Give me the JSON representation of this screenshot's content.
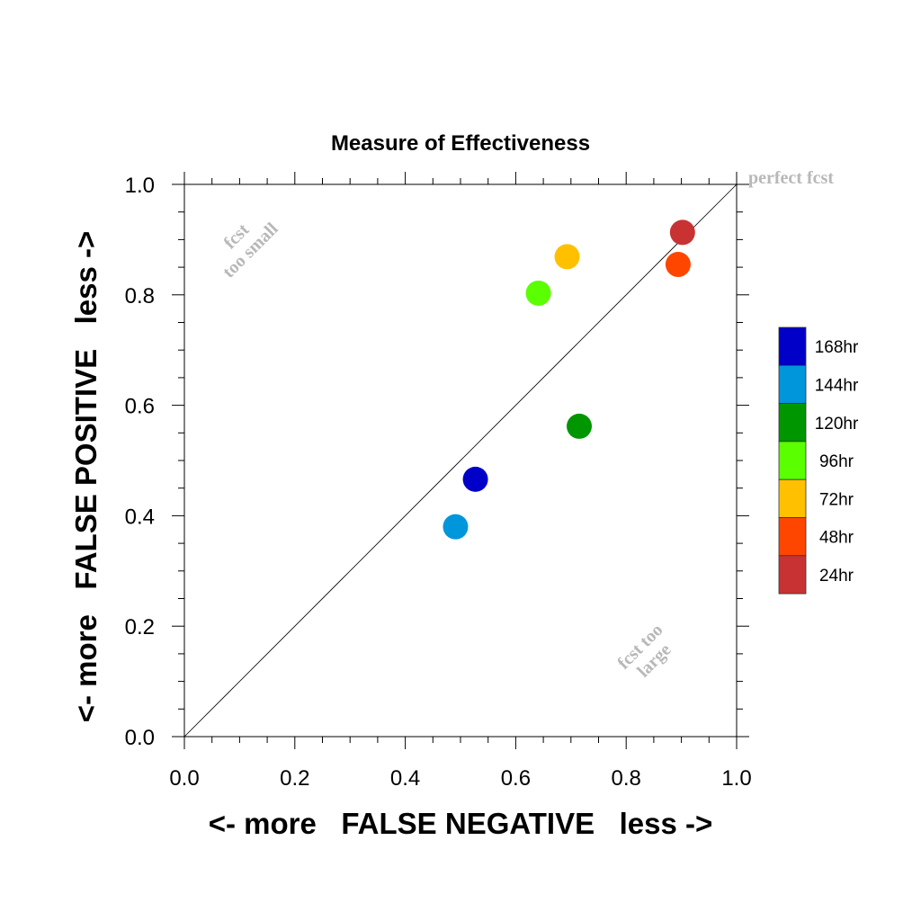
{
  "chart_data": {
    "type": "scatter",
    "title": "Measure of Effectiveness",
    "xlabel": "<- more   FALSE NEGATIVE   less ->",
    "ylabel": "<- more   FALSE POSITIVE   less ->",
    "xlim": [
      0.0,
      1.0
    ],
    "ylim": [
      0.0,
      1.0
    ],
    "xticks": [
      "0.0",
      "0.2",
      "0.4",
      "0.6",
      "0.8",
      "1.0"
    ],
    "yticks": [
      "0.0",
      "0.2",
      "0.4",
      "0.6",
      "0.8",
      "1.0"
    ],
    "grid": false,
    "legend_position": "right",
    "reference_line": "diagonal y = x",
    "annotations": {
      "perfect": "perfect fcst",
      "small_line1": "fcst",
      "small_line2": "too small",
      "large_line1": "fcst too",
      "large_line2": "large"
    },
    "series": [
      {
        "name": "168hr",
        "color": "#0000c8",
        "x": 0.527,
        "y": 0.466
      },
      {
        "name": "144hr",
        "color": "#0096dc",
        "x": 0.491,
        "y": 0.38
      },
      {
        "name": "120hr",
        "color": "#009600",
        "x": 0.715,
        "y": 0.562
      },
      {
        "name": "96hr",
        "color": "#5aff00",
        "x": 0.641,
        "y": 0.803
      },
      {
        "name": "72hr",
        "color": "#ffc000",
        "x": 0.693,
        "y": 0.869
      },
      {
        "name": "48hr",
        "color": "#ff4600",
        "x": 0.894,
        "y": 0.855
      },
      {
        "name": "24hr",
        "color": "#c83232",
        "x": 0.902,
        "y": 0.913
      }
    ]
  }
}
